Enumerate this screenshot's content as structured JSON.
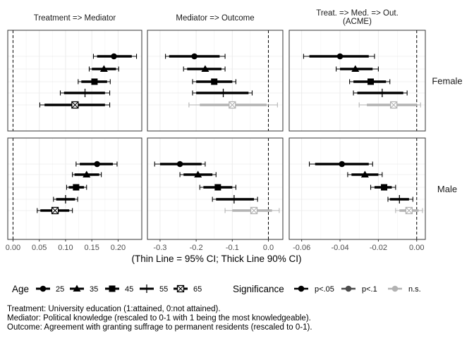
{
  "chart_data": {
    "type": "scatter",
    "subtype": "faceted-coefficient-plot",
    "xlabel": "(Thin Line = 95% CI; Thick Line 90% CI)",
    "columns": [
      {
        "title_lines": [
          "Treatment => Mediator"
        ],
        "xlim": [
          -0.01,
          0.245
        ],
        "ticks": [
          0.0,
          0.05,
          0.1,
          0.15,
          0.2
        ],
        "tick_labels": [
          "0.00",
          "0.05",
          "0.10",
          "0.15",
          "0.20"
        ]
      },
      {
        "title_lines": [
          "Mediator => Outcome"
        ],
        "xlim": [
          -0.335,
          0.04
        ],
        "ticks": [
          -0.3,
          -0.2,
          -0.1,
          0.0
        ],
        "tick_labels": [
          "-0.3",
          "-0.2",
          "-0.1",
          "0.0"
        ]
      },
      {
        "title_lines": [
          "Treat. => Med. => Out.",
          "(ACME)"
        ],
        "xlim": [
          -0.0665,
          0.0045
        ],
        "ticks": [
          -0.06,
          -0.04,
          -0.02,
          0.0
        ],
        "tick_labels": [
          "-0.06",
          "-0.04",
          "-0.02",
          "0.00"
        ]
      }
    ],
    "rows": [
      "Female",
      "Male"
    ],
    "age_groups": [
      "25",
      "35",
      "45",
      "55",
      "65"
    ],
    "points": {
      "Female": [
        [
          {
            "age": "25",
            "est": 0.192,
            "lo90": 0.16,
            "hi90": 0.226,
            "lo95": 0.153,
            "hi95": 0.235,
            "sig": "p<.05"
          },
          {
            "age": "35",
            "est": 0.173,
            "lo90": 0.15,
            "hi90": 0.196,
            "lo95": 0.145,
            "hi95": 0.201,
            "sig": "p<.05"
          },
          {
            "age": "45",
            "est": 0.155,
            "lo90": 0.13,
            "hi90": 0.179,
            "lo95": 0.124,
            "hi95": 0.185,
            "sig": "p<.05"
          },
          {
            "age": "55",
            "est": 0.137,
            "lo90": 0.097,
            "hi90": 0.175,
            "lo95": 0.09,
            "hi95": 0.184,
            "sig": "p<.05"
          },
          {
            "age": "65",
            "est": 0.118,
            "lo90": 0.06,
            "hi90": 0.175,
            "lo95": 0.051,
            "hi95": 0.184,
            "sig": "p<.05"
          }
        ],
        [
          {
            "age": "25",
            "est": -0.205,
            "lo90": -0.275,
            "hi90": -0.135,
            "lo95": -0.285,
            "hi95": -0.12,
            "sig": "p<.05"
          },
          {
            "age": "35",
            "est": -0.175,
            "lo90": -0.225,
            "hi90": -0.13,
            "lo95": -0.235,
            "hi95": -0.12,
            "sig": "p<.05"
          },
          {
            "age": "45",
            "est": -0.15,
            "lo90": -0.2,
            "hi90": -0.1,
            "lo95": -0.21,
            "hi95": -0.09,
            "sig": "p<.05"
          },
          {
            "age": "55",
            "est": -0.125,
            "lo90": -0.2,
            "hi90": -0.055,
            "lo95": -0.21,
            "hi95": -0.045,
            "sig": "p<.05"
          },
          {
            "age": "65",
            "est": -0.1,
            "lo90": -0.19,
            "hi90": -0.005,
            "lo95": -0.22,
            "hi95": 0.025,
            "sig": "n.s."
          }
        ],
        [
          {
            "age": "25",
            "est": -0.04,
            "lo90": -0.056,
            "hi90": -0.025,
            "lo95": -0.059,
            "hi95": -0.022,
            "sig": "p<.05"
          },
          {
            "age": "35",
            "est": -0.032,
            "lo90": -0.04,
            "hi90": -0.023,
            "lo95": -0.042,
            "hi95": -0.02,
            "sig": "p<.05"
          },
          {
            "age": "45",
            "est": -0.024,
            "lo90": -0.033,
            "hi90": -0.016,
            "lo95": -0.035,
            "hi95": -0.014,
            "sig": "p<.05"
          },
          {
            "age": "55",
            "est": -0.018,
            "lo90": -0.031,
            "hi90": -0.007,
            "lo95": -0.033,
            "hi95": -0.005,
            "sig": "p<.05"
          },
          {
            "age": "65",
            "est": -0.012,
            "lo90": -0.026,
            "hi90": 0.0,
            "lo95": -0.03,
            "hi95": 0.002,
            "sig": "n.s."
          }
        ]
      ],
      "Male": [
        [
          {
            "age": "25",
            "est": 0.16,
            "lo90": 0.127,
            "hi90": 0.19,
            "lo95": 0.12,
            "hi95": 0.198,
            "sig": "p<.05"
          },
          {
            "age": "35",
            "est": 0.14,
            "lo90": 0.117,
            "hi90": 0.164,
            "lo95": 0.113,
            "hi95": 0.168,
            "sig": "p<.05"
          },
          {
            "age": "45",
            "est": 0.12,
            "lo90": 0.106,
            "hi90": 0.135,
            "lo95": 0.102,
            "hi95": 0.14,
            "sig": "p<.05"
          },
          {
            "age": "55",
            "est": 0.1,
            "lo90": 0.082,
            "hi90": 0.118,
            "lo95": 0.077,
            "hi95": 0.123,
            "sig": "p<.05"
          },
          {
            "age": "65",
            "est": 0.08,
            "lo90": 0.052,
            "hi90": 0.107,
            "lo95": 0.046,
            "hi95": 0.113,
            "sig": "p<.05"
          }
        ],
        [
          {
            "age": "25",
            "est": -0.245,
            "lo90": -0.3,
            "hi90": -0.185,
            "lo95": -0.315,
            "hi95": -0.175,
            "sig": "p<.05"
          },
          {
            "age": "35",
            "est": -0.195,
            "lo90": -0.235,
            "hi90": -0.155,
            "lo95": -0.245,
            "hi95": -0.145,
            "sig": "p<.05"
          },
          {
            "age": "45",
            "est": -0.14,
            "lo90": -0.18,
            "hi90": -0.1,
            "lo95": -0.19,
            "hi95": -0.09,
            "sig": "p<.05"
          },
          {
            "age": "55",
            "est": -0.095,
            "lo90": -0.145,
            "hi90": -0.04,
            "lo95": -0.155,
            "hi95": -0.03,
            "sig": "p<.05"
          },
          {
            "age": "65",
            "est": -0.04,
            "lo90": -0.1,
            "hi90": 0.01,
            "lo95": -0.12,
            "hi95": 0.03,
            "sig": "n.s."
          }
        ],
        [
          {
            "age": "25",
            "est": -0.039,
            "lo90": -0.053,
            "hi90": -0.025,
            "lo95": -0.056,
            "hi95": -0.023,
            "sig": "p<.05"
          },
          {
            "age": "35",
            "est": -0.027,
            "lo90": -0.034,
            "hi90": -0.02,
            "lo95": -0.036,
            "hi95": -0.018,
            "sig": "p<.05"
          },
          {
            "age": "45",
            "est": -0.017,
            "lo90": -0.022,
            "hi90": -0.013,
            "lo95": -0.024,
            "hi95": -0.011,
            "sig": "p<.05"
          },
          {
            "age": "55",
            "est": -0.009,
            "lo90": -0.014,
            "hi90": -0.004,
            "lo95": -0.015,
            "hi95": -0.002,
            "sig": "p<.05"
          },
          {
            "age": "65",
            "est": -0.004,
            "lo90": -0.009,
            "hi90": 0.001,
            "lo95": -0.011,
            "hi95": 0.003,
            "sig": "n.s."
          }
        ]
      ]
    },
    "reference_line": 0,
    "grid": true,
    "legend": {
      "placement": "bottom",
      "age_title": "Age",
      "age_items": [
        "25",
        "35",
        "45",
        "55",
        "65"
      ],
      "sig_title": "Significance",
      "sig_items": [
        "p<.05",
        "p<.1",
        "n.s."
      ]
    },
    "colors": {
      "p<.05": "#000000",
      "p<.1": "#4d4d4d",
      "n.s.": "#b3b3b3"
    }
  },
  "footnotes": [
    "Treatment: University education (1:attained, 0:not attained).",
    "Mediator: Political knowledge (rescaled to 0-1 with 1 being the most knowledgeable).",
    "Outcome: Agreement with granting suffrage to permanent residents (rescaled to 0-1)."
  ]
}
